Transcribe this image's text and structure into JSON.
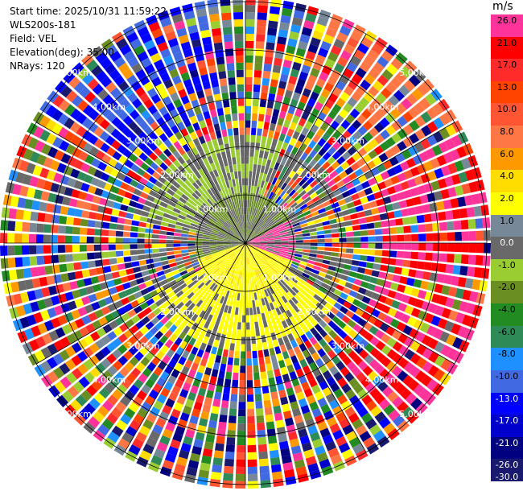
{
  "header": {
    "start_time": "Start time: 2025/10/31 11:59:22",
    "instrument": "WLS200s-181",
    "field": "Field: VEL",
    "elevation": "Elevation(deg): 35.00",
    "nrays": "NRays: 120"
  },
  "colorbar": {
    "unit": "m/s",
    "bins": [
      {
        "label": "26.0",
        "color": "#ff3399"
      },
      {
        "label": "21.0",
        "color": "#ff0000"
      },
      {
        "label": "17.0",
        "color": "#ff2a2a"
      },
      {
        "label": "13.0",
        "color": "#ff4400"
      },
      {
        "label": "10.0",
        "color": "#ff5533"
      },
      {
        "label": "8.0",
        "color": "#ff7744"
      },
      {
        "label": "6.0",
        "color": "#ff9900"
      },
      {
        "label": "4.0",
        "color": "#ffdd00"
      },
      {
        "label": "2.0",
        "color": "#ffff00"
      },
      {
        "label": "1.0",
        "color": "#778899"
      },
      {
        "label": "0.0",
        "color": "#696969"
      },
      {
        "label": "-1.0",
        "color": "#9acd32"
      },
      {
        "label": "-2.0",
        "color": "#6b8e23"
      },
      {
        "label": "-4.0",
        "color": "#228b22"
      },
      {
        "label": "-6.0",
        "color": "#2e8b57"
      },
      {
        "label": "-8.0",
        "color": "#1e90ff"
      },
      {
        "label": "-10.0",
        "color": "#4169e1"
      },
      {
        "label": "-13.0",
        "color": "#0000ff"
      },
      {
        "label": "-17.0",
        "color": "#0000cd"
      },
      {
        "label": "-21.0",
        "color": "#000080"
      },
      {
        "label": "-26.0",
        "color": "#191970"
      }
    ],
    "bottom_label": "-30.0"
  },
  "range_rings": {
    "labels": [
      "1.00km",
      "2.00km",
      "3.00km",
      "4.00km",
      "5.00km"
    ]
  }
}
